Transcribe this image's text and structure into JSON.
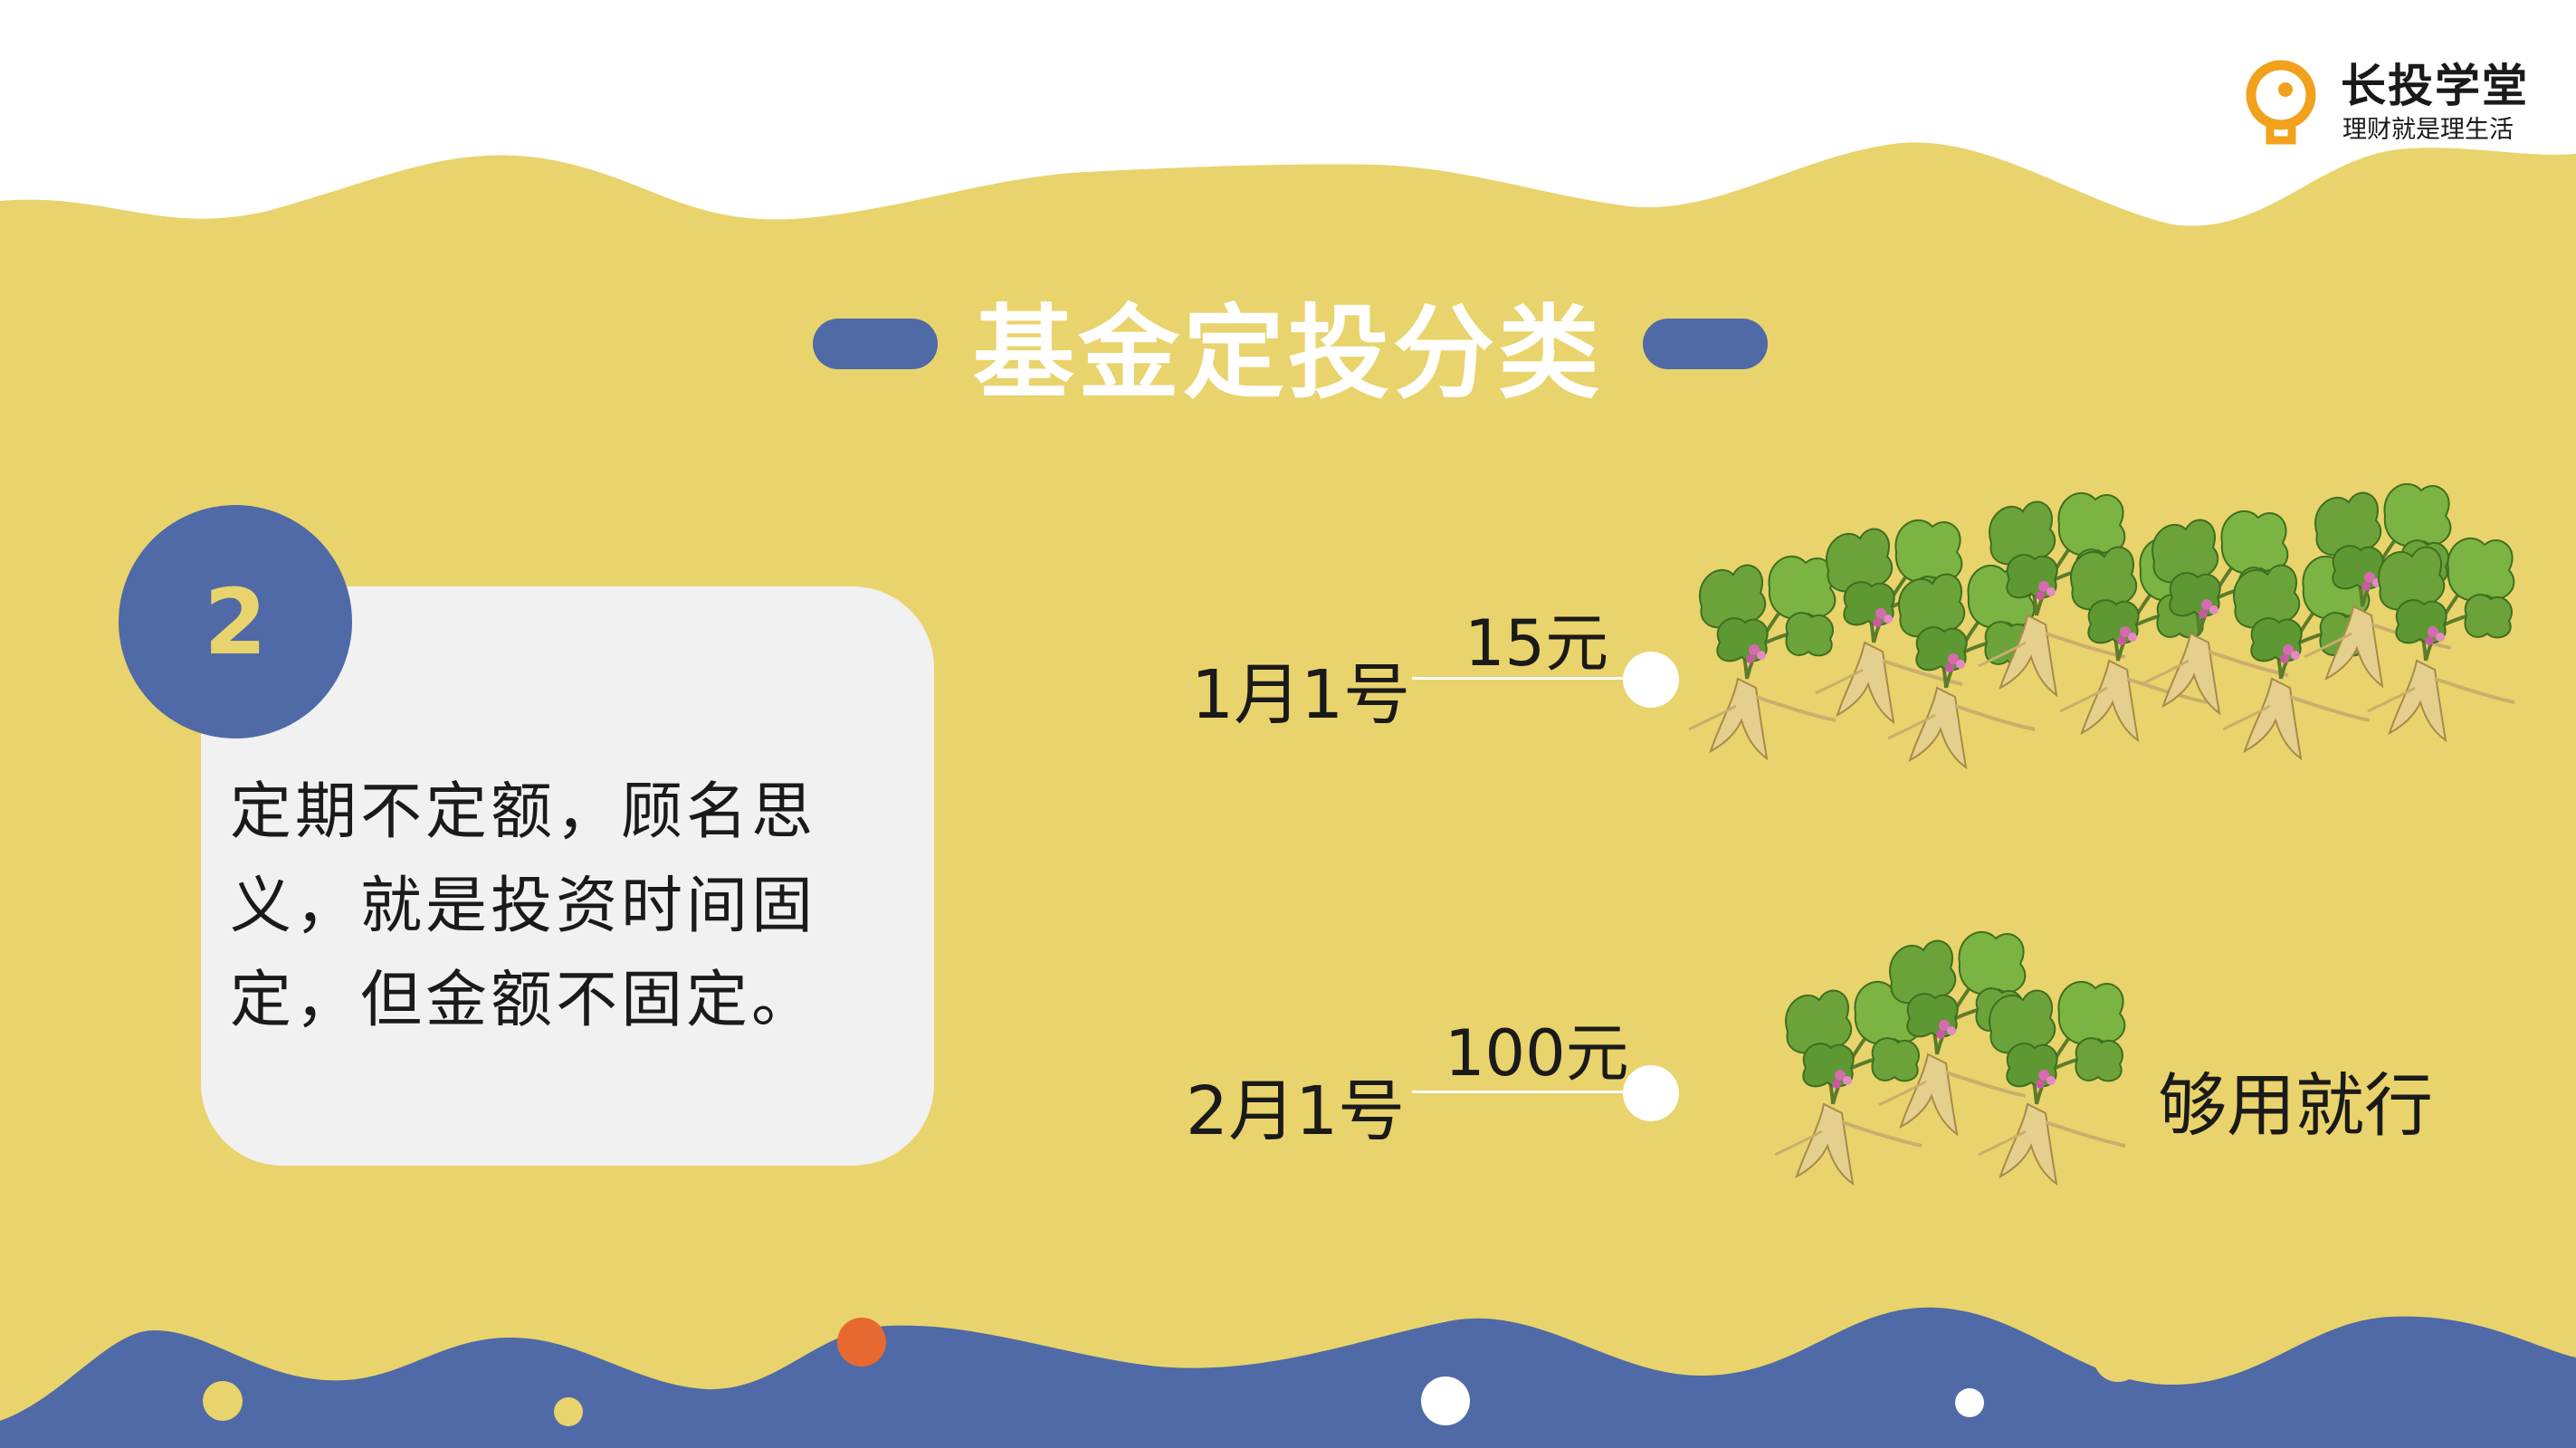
{
  "brand": {
    "name": "长投学堂",
    "tagline": "理财就是理生活"
  },
  "slide": {
    "title": "基金定投分类",
    "number": "2",
    "description": "定期不定额，顾名思义，就是投资时间固定，但金额不固定。"
  },
  "timeline": [
    {
      "date": "1月1号",
      "amount": "15元"
    },
    {
      "date": "2月1号",
      "amount": "100元"
    }
  ],
  "note": "够用就行",
  "colors": {
    "background_yellow": "#e9d36c",
    "accent_blue": "#4f6aa6",
    "accent_orange": "#e8692f",
    "card_gray": "#f1f1f1",
    "logo_orange": "#f2a11c"
  },
  "icons": {
    "logo": "lightbulb-icon",
    "plants": "ginseng-plant-icon"
  }
}
